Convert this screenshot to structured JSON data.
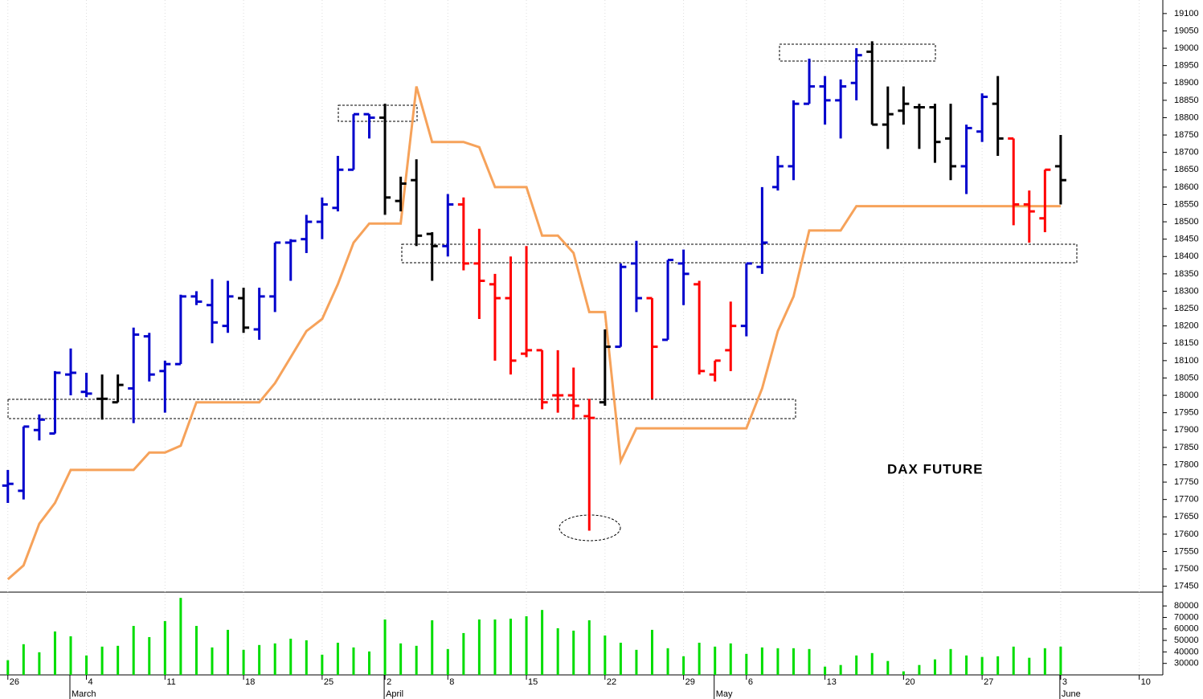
{
  "chart_data": [
    {
      "type": "ohlc",
      "annotation": "DAX FUTURE",
      "open": [
        17740,
        17725,
        17900,
        17890,
        18060,
        18010,
        17990,
        17980,
        18020,
        18170,
        18070,
        18090,
        18285,
        18260,
        18200,
        18280,
        18190,
        18285,
        18440,
        18450,
        18500,
        18540,
        18650,
        18810,
        18800,
        18560,
        18620,
        18465,
        18430,
        18550,
        18380,
        18320,
        18280,
        18120,
        18130,
        18000,
        18000,
        17940,
        17980,
        18140,
        18380,
        18280,
        18160,
        18380,
        18320,
        18060,
        18130,
        18200,
        18370,
        18600,
        18660,
        18840,
        18890,
        18850,
        18900,
        18990,
        18780,
        18820,
        18830,
        18830,
        18740,
        18660,
        18760,
        18840,
        18740,
        18550,
        18510,
        18660
      ],
      "high": [
        17785,
        17910,
        17945,
        18070,
        18135,
        18065,
        18060,
        18060,
        18195,
        18180,
        18100,
        18290,
        18300,
        18335,
        18330,
        18310,
        18310,
        18440,
        18450,
        18520,
        18570,
        18690,
        18810,
        18810,
        18840,
        18630,
        18680,
        18470,
        18580,
        18570,
        18480,
        18350,
        18400,
        18430,
        18130,
        18130,
        18080,
        17990,
        18190,
        18380,
        18445,
        18280,
        18390,
        18420,
        18330,
        18100,
        18270,
        18380,
        18600,
        18690,
        18850,
        18970,
        18920,
        18910,
        19000,
        19020,
        18890,
        18890,
        18840,
        18840,
        18840,
        18780,
        18870,
        18920,
        18740,
        18590,
        18650,
        18750
      ],
      "low": [
        17690,
        17700,
        17870,
        17890,
        18000,
        17995,
        17930,
        17980,
        17920,
        18040,
        17950,
        18090,
        18260,
        18150,
        18180,
        18180,
        18160,
        18240,
        18330,
        18410,
        18450,
        18530,
        18650,
        18740,
        18520,
        18530,
        18430,
        18330,
        18400,
        18360,
        18220,
        18100,
        18060,
        18110,
        17960,
        17950,
        17930,
        17610,
        17970,
        18140,
        18240,
        17990,
        18160,
        18260,
        18060,
        18040,
        18070,
        18170,
        18350,
        18590,
        18620,
        18840,
        18780,
        18740,
        18850,
        18780,
        18710,
        18780,
        18710,
        18670,
        18620,
        18580,
        18730,
        18690,
        18490,
        18440,
        18470,
        18550
      ],
      "close": [
        17745,
        17910,
        17930,
        18065,
        18065,
        18005,
        17990,
        18030,
        18175,
        18060,
        18090,
        18285,
        18270,
        18210,
        18285,
        18195,
        18285,
        18440,
        18445,
        18500,
        18550,
        18650,
        18810,
        18800,
        18570,
        18610,
        18460,
        18430,
        18550,
        18380,
        18330,
        18280,
        18100,
        18130,
        17980,
        18000,
        17970,
        17935,
        18140,
        18370,
        18280,
        18140,
        18390,
        18350,
        18070,
        18100,
        18200,
        18380,
        18440,
        18660,
        18840,
        18890,
        18850,
        18890,
        18980,
        18780,
        18810,
        18840,
        18830,
        18730,
        18660,
        18770,
        18860,
        18740,
        18550,
        18530,
        18650,
        18620
      ],
      "bar_colors": [
        "#0000cc",
        "#0000cc",
        "#0000cc",
        "#0000cc",
        "#0000cc",
        "#0000cc",
        "#000000",
        "#000000",
        "#0000cc",
        "#0000cc",
        "#0000cc",
        "#0000cc",
        "#0000cc",
        "#0000cc",
        "#0000cc",
        "#000000",
        "#0000cc",
        "#0000cc",
        "#0000cc",
        "#0000cc",
        "#0000cc",
        "#0000cc",
        "#0000cc",
        "#0000cc",
        "#000000",
        "#000000",
        "#000000",
        "#000000",
        "#0000cc",
        "#ff0000",
        "#ff0000",
        "#ff0000",
        "#ff0000",
        "#ff0000",
        "#ff0000",
        "#ff0000",
        "#ff0000",
        "#ff0000",
        "#000000",
        "#0000cc",
        "#0000cc",
        "#ff0000",
        "#0000cc",
        "#0000cc",
        "#ff0000",
        "#ff0000",
        "#ff0000",
        "#0000cc",
        "#0000cc",
        "#0000cc",
        "#0000cc",
        "#0000cc",
        "#0000cc",
        "#0000cc",
        "#0000cc",
        "#000000",
        "#000000",
        "#000000",
        "#000000",
        "#000000",
        "#000000",
        "#0000cc",
        "#0000cc",
        "#000000",
        "#ff0000",
        "#ff0000",
        "#ff0000",
        "#000000"
      ],
      "line": {
        "color": "#f6a25a",
        "values": [
          17470,
          17510,
          17630,
          17690,
          17785,
          17785,
          17785,
          17785,
          17785,
          17835,
          17835,
          17855,
          17980,
          17980,
          17980,
          17980,
          17980,
          18035,
          18110,
          18185,
          18220,
          18320,
          18440,
          18495,
          18495,
          18495,
          18890,
          18730,
          18730,
          18730,
          18715,
          18600,
          18600,
          18600,
          18460,
          18460,
          18410,
          18240,
          18240,
          17810,
          17905,
          17905,
          17905,
          17905,
          17905,
          17905,
          17905,
          17905,
          18020,
          18185,
          18285,
          18475,
          18475,
          18475,
          18545,
          18545,
          18545,
          18545,
          18545,
          18545,
          18545,
          18545,
          18545,
          18545,
          18545,
          18545,
          18545,
          18545
        ]
      },
      "xlim": [
        -0.5,
        73.5
      ],
      "ylim": [
        17433,
        19139
      ],
      "yticks": [
        17450,
        17500,
        17550,
        17600,
        17650,
        17700,
        17750,
        17800,
        17850,
        17900,
        17950,
        18000,
        18050,
        18100,
        18150,
        18200,
        18250,
        18300,
        18350,
        18400,
        18450,
        18500,
        18550,
        18600,
        18650,
        18700,
        18750,
        18800,
        18850,
        18900,
        18950,
        19000,
        19050,
        19100
      ],
      "xticks": [
        {
          "value": 0,
          "label": "26"
        },
        {
          "value": 5,
          "label": "4"
        },
        {
          "value": 10,
          "label": "11"
        },
        {
          "value": 15,
          "label": "18"
        },
        {
          "value": 20,
          "label": "25"
        },
        {
          "value": 24,
          "label": "2"
        },
        {
          "value": 28,
          "label": "8"
        },
        {
          "value": 33,
          "label": "15"
        },
        {
          "value": 38,
          "label": "22"
        },
        {
          "value": 43,
          "label": "29"
        },
        {
          "value": 47,
          "label": "6"
        },
        {
          "value": 52,
          "label": "13"
        },
        {
          "value": 57,
          "label": "20"
        },
        {
          "value": 62,
          "label": "27"
        },
        {
          "value": 67,
          "label": "3"
        },
        {
          "value": 72,
          "label": "10"
        }
      ],
      "month_ticks": [
        {
          "value": 4,
          "label": "March"
        },
        {
          "value": 24,
          "label": "April"
        },
        {
          "value": 45,
          "label": "May"
        },
        {
          "value": 67,
          "label": "June"
        }
      ]
    },
    {
      "type": "bar",
      "color": "#00dd00",
      "values": [
        32800,
        46700,
        39700,
        57800,
        53600,
        36900,
        44600,
        45300,
        62600,
        52900,
        66800,
        87000,
        62600,
        43900,
        59200,
        41800,
        46000,
        47400,
        51500,
        50100,
        37600,
        48000,
        43900,
        40400,
        68200,
        47400,
        45300,
        67500,
        42500,
        56400,
        68200,
        68200,
        68900,
        71000,
        76500,
        60600,
        58500,
        67500,
        54300,
        48000,
        41800,
        59200,
        43200,
        36200,
        48000,
        44600,
        47400,
        38300,
        43900,
        43200,
        43200,
        42500,
        27200,
        28600,
        36900,
        39000,
        32100,
        23100,
        28600,
        33500,
        42500,
        36900,
        35600,
        36200,
        44600,
        34900,
        43200,
        44600
      ],
      "xlim": [
        -0.5,
        73.5
      ],
      "ylim": [
        20000,
        92000
      ],
      "yticks": [
        30000,
        40000,
        50000,
        60000,
        70000,
        80000
      ]
    }
  ]
}
